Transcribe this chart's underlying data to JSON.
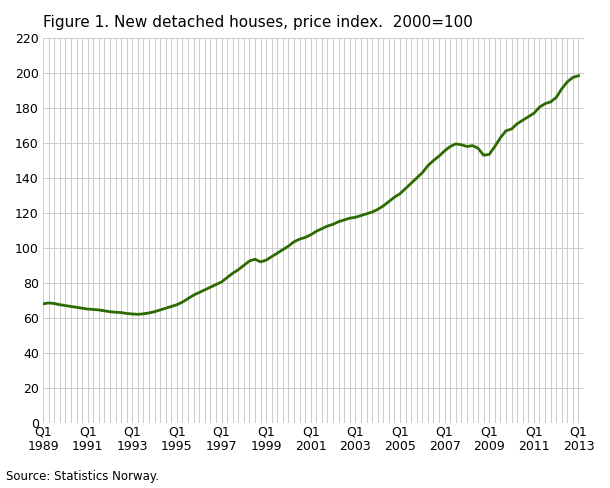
{
  "title": "Figure 1. New detached houses, price index.  2000=100",
  "source": "Source: Statistics Norway.",
  "line_color": "#2d6a00",
  "line_width": 2.0,
  "background_color": "#ffffff",
  "plot_bg_color": "#ffffff",
  "grid_color": "#cccccc",
  "ylim": [
    0,
    220
  ],
  "yticks": [
    0,
    20,
    40,
    60,
    80,
    100,
    120,
    140,
    160,
    180,
    200,
    220
  ],
  "xtick_years": [
    1989,
    1991,
    1993,
    1995,
    1997,
    1999,
    2001,
    2003,
    2005,
    2007,
    2009,
    2011,
    2013
  ],
  "values": {
    "1989Q1": 68.0,
    "1989Q2": 68.5,
    "1989Q3": 68.2,
    "1989Q4": 67.5,
    "1990Q1": 67.0,
    "1990Q2": 66.5,
    "1990Q3": 66.0,
    "1990Q4": 65.5,
    "1991Q1": 65.0,
    "1991Q2": 64.8,
    "1991Q3": 64.5,
    "1991Q4": 64.0,
    "1992Q1": 63.5,
    "1992Q2": 63.2,
    "1992Q3": 63.0,
    "1992Q4": 62.5,
    "1993Q1": 62.2,
    "1993Q2": 62.0,
    "1993Q3": 62.3,
    "1993Q4": 62.8,
    "1994Q1": 63.5,
    "1994Q2": 64.5,
    "1994Q3": 65.5,
    "1994Q4": 66.5,
    "1995Q1": 67.5,
    "1995Q2": 69.0,
    "1995Q3": 71.0,
    "1995Q4": 73.0,
    "1996Q1": 74.5,
    "1996Q2": 76.0,
    "1996Q3": 77.5,
    "1996Q4": 79.0,
    "1997Q1": 80.5,
    "1997Q2": 83.0,
    "1997Q3": 85.5,
    "1997Q4": 87.5,
    "1998Q1": 90.0,
    "1998Q2": 92.5,
    "1998Q3": 93.5,
    "1998Q4": 92.0,
    "1999Q1": 93.0,
    "1999Q2": 95.0,
    "1999Q3": 97.0,
    "1999Q4": 99.0,
    "2000Q1": 101.0,
    "2000Q2": 103.5,
    "2000Q3": 105.0,
    "2000Q4": 106.0,
    "2001Q1": 107.5,
    "2001Q2": 109.5,
    "2001Q3": 111.0,
    "2001Q4": 112.5,
    "2002Q1": 113.5,
    "2002Q2": 115.0,
    "2002Q3": 116.0,
    "2002Q4": 117.0,
    "2003Q1": 117.5,
    "2003Q2": 118.5,
    "2003Q3": 119.5,
    "2003Q4": 120.5,
    "2004Q1": 122.0,
    "2004Q2": 124.0,
    "2004Q3": 126.5,
    "2004Q4": 129.0,
    "2005Q1": 131.0,
    "2005Q2": 134.0,
    "2005Q3": 137.0,
    "2005Q4": 140.0,
    "2006Q1": 143.0,
    "2006Q2": 147.0,
    "2006Q3": 150.0,
    "2006Q4": 152.5,
    "2007Q1": 155.5,
    "2007Q2": 158.0,
    "2007Q3": 159.5,
    "2007Q4": 159.0,
    "2008Q1": 158.0,
    "2008Q2": 158.5,
    "2008Q3": 157.0,
    "2008Q4": 153.0,
    "2009Q1": 153.5,
    "2009Q2": 158.0,
    "2009Q3": 163.0,
    "2009Q4": 167.0,
    "2010Q1": 168.0,
    "2010Q2": 171.0,
    "2010Q3": 173.0,
    "2010Q4": 175.0,
    "2011Q1": 177.0,
    "2011Q2": 180.5,
    "2011Q3": 182.5,
    "2011Q4": 183.5,
    "2012Q1": 186.0,
    "2012Q2": 191.0,
    "2012Q3": 195.0,
    "2012Q4": 197.5,
    "2013Q1": 198.5
  }
}
